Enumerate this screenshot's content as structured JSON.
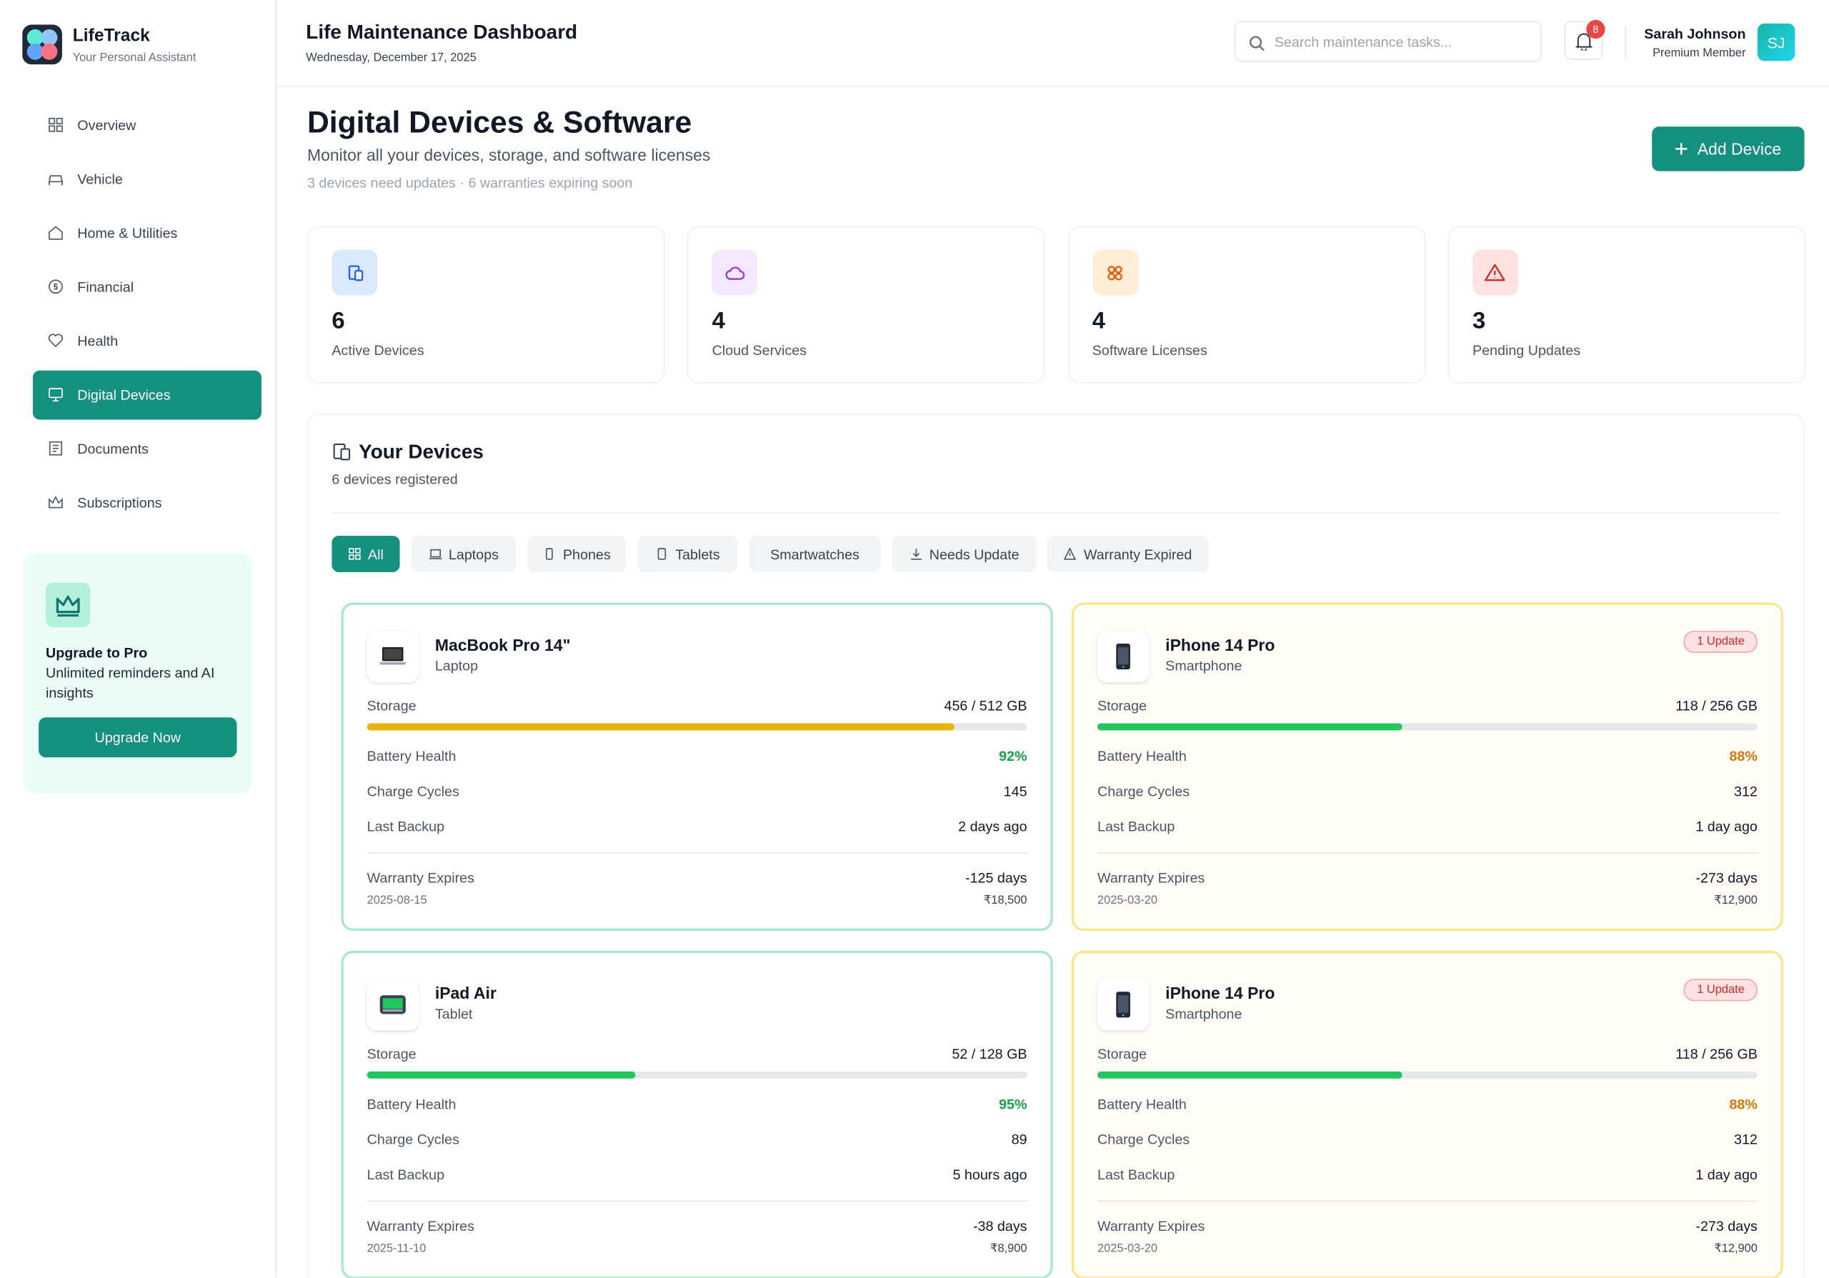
{
  "sidebar": {
    "brand": "LifeTrack",
    "tagline": "Your Personal Assistant",
    "nav": [
      {
        "label": "Overview"
      },
      {
        "label": "Vehicle"
      },
      {
        "label": "Home & Utilities"
      },
      {
        "label": "Financial"
      },
      {
        "label": "Health"
      },
      {
        "label": "Digital Devices",
        "active": true
      },
      {
        "label": "Documents"
      },
      {
        "label": "Subscriptions"
      }
    ],
    "promo": {
      "title": "Upgrade to Pro",
      "text": "Unlimited reminders and AI insights",
      "button": "Upgrade Now"
    }
  },
  "header": {
    "title": "Life Maintenance Dashboard",
    "date": "Wednesday, December 17, 2025",
    "search_placeholder": "Search maintenance tasks...",
    "notifications": 8,
    "user_name": "Sarah Johnson",
    "user_role": "Premium Member",
    "avatar": "SJ"
  },
  "page": {
    "title": "Digital Devices & Software",
    "subtitle": "Monitor all your devices, storage, and software licenses",
    "summary": "3 devices need updates · 6 warranties expiring soon",
    "add_button": "Add Device"
  },
  "stats": [
    {
      "value": 6,
      "label": "Active Devices",
      "color": "#2563eb",
      "bg": "#dbeafe"
    },
    {
      "value": 4,
      "label": "Cloud Services",
      "color": "#9333ea",
      "bg": "#f3e8ff"
    },
    {
      "value": 4,
      "label": "Software Licenses",
      "color": "#ea580c",
      "bg": "#ffedd5"
    },
    {
      "value": 3,
      "label": "Pending Updates",
      "color": "#dc2626",
      "bg": "#fee2e2"
    }
  ],
  "devices_panel": {
    "title": "Your Devices",
    "count_text": "6 devices registered",
    "filters": [
      {
        "label": "All",
        "active": true
      },
      {
        "label": "Laptops"
      },
      {
        "label": "Phones"
      },
      {
        "label": "Tablets"
      },
      {
        "label": "Smartwatches"
      },
      {
        "label": "Needs Update"
      },
      {
        "label": "Warranty Expired"
      }
    ]
  },
  "fields": {
    "storage": "Storage",
    "battery": "Battery Health",
    "cycles": "Charge Cycles",
    "backup": "Last Backup",
    "warranty": "Warranty Expires"
  },
  "devices": [
    {
      "name": "MacBook Pro 14\"",
      "type": "Laptop",
      "storage_label": "456 / 512 GB",
      "storage_used": 456,
      "storage_total": 512,
      "bar_color": "#eab308",
      "battery": "92%",
      "battery_color": "#16a34a",
      "cycles": 145,
      "backup": "2 days ago",
      "warranty_days": "-125 days",
      "warranty_date": "2025-08-15",
      "price": "₹18,500",
      "border_color": "#a7e8c5",
      "card_bg": "#ffffff"
    },
    {
      "name": "iPhone 14 Pro",
      "type": "Smartphone",
      "badge": "1 Update",
      "storage_label": "118 / 256 GB",
      "storage_used": 118,
      "storage_total": 256,
      "bar_color": "#22c55e",
      "battery": "88%",
      "battery_color": "#d97706",
      "cycles": 312,
      "backup": "1 day ago",
      "warranty_days": "-273 days",
      "warranty_date": "2025-03-20",
      "price": "₹12,900",
      "border_color": "#fde68a",
      "card_bg": "#fffdf6"
    },
    {
      "name": "iPad Air",
      "type": "Tablet",
      "storage_label": "52 / 128 GB",
      "storage_used": 52,
      "storage_total": 128,
      "bar_color": "#22c55e",
      "battery": "95%",
      "battery_color": "#16a34a",
      "cycles": 89,
      "backup": "5 hours ago",
      "warranty_days": "-38 days",
      "warranty_date": "2025-11-10",
      "price": "₹8,900",
      "border_color": "#a7e8c5",
      "card_bg": "#ffffff"
    },
    {
      "name": "iPhone 14 Pro",
      "type": "Smartphone",
      "badge": "1 Update",
      "storage_label": "118 / 256 GB",
      "storage_used": 118,
      "storage_total": 256,
      "bar_color": "#22c55e",
      "battery": "88%",
      "battery_color": "#d97706",
      "cycles": 312,
      "backup": "1 day ago",
      "warranty_days": "-273 days",
      "warranty_date": "2025-03-20",
      "price": "₹12,900",
      "border_color": "#fde68a",
      "card_bg": "#fffdf6"
    }
  ]
}
